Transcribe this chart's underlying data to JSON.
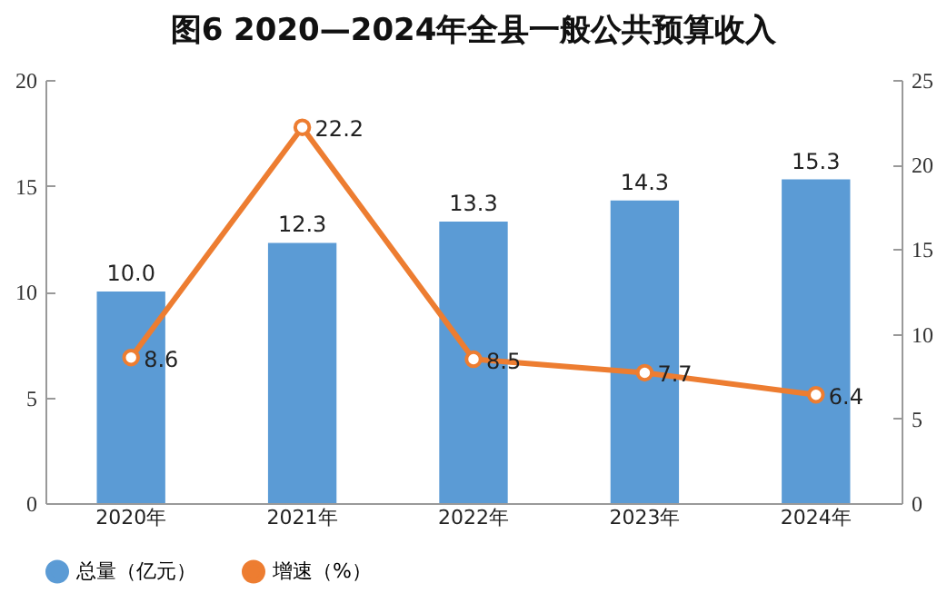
{
  "chart_data": {
    "type": "bar",
    "title": "图6  2020—2024年全县一般公共预算收入",
    "categories": [
      "2020年",
      "2021年",
      "2022年",
      "2023年",
      "2024年"
    ],
    "series": [
      {
        "name": "总量（亿元）",
        "color": "#5b9bd5",
        "values": [
          10.0,
          12.3,
          13.3,
          14.3,
          15.3
        ],
        "value_labels": [
          "10.0",
          "12.3",
          "13.3",
          "14.3",
          "15.3"
        ]
      },
      {
        "name": "增速（%）",
        "type": "line",
        "axis": "y2",
        "color": "#ed7d31",
        "values": [
          8.6,
          22.2,
          8.5,
          7.7,
          6.4
        ],
        "value_labels": [
          "8.6",
          "22.2",
          "8.5",
          "7.7",
          "6.4"
        ]
      }
    ],
    "ylim": [
      0,
      20
    ],
    "yticks": [
      0,
      5,
      10,
      15,
      20
    ],
    "y2lim": [
      0,
      25
    ],
    "y2ticks": [
      0,
      5,
      10,
      15,
      20,
      25
    ],
    "legend": "bottom",
    "marker": "circle"
  }
}
